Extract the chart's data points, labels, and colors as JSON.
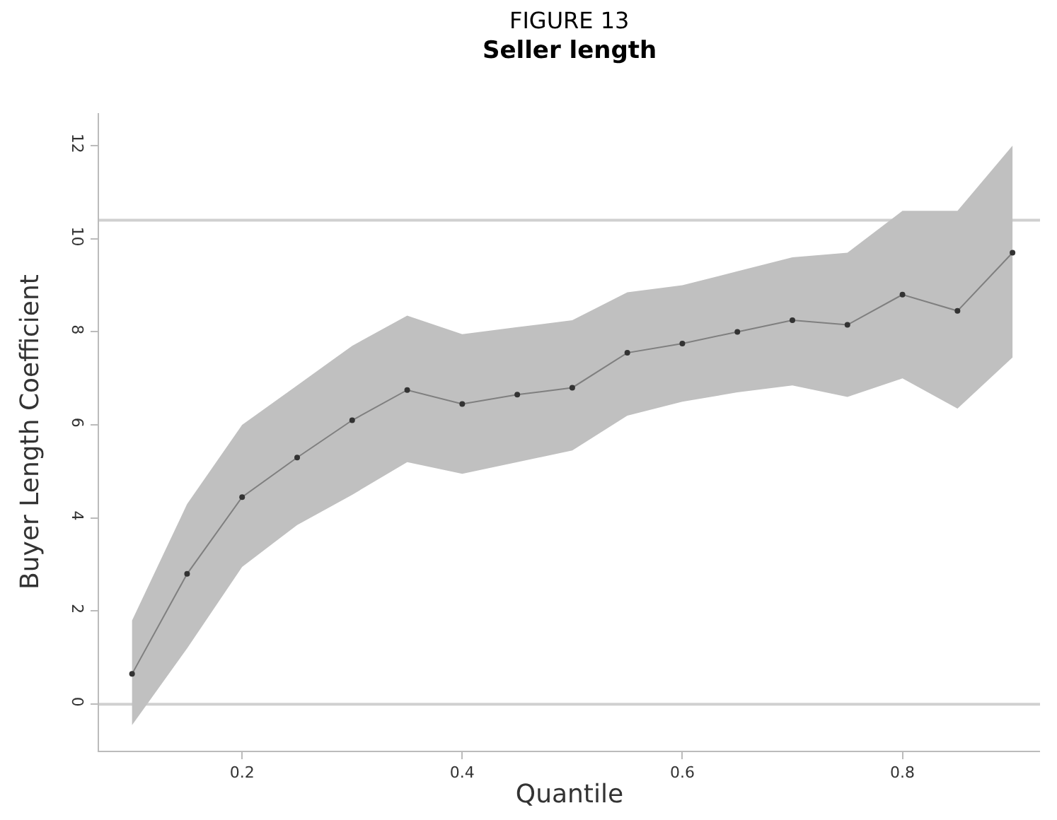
{
  "chart_data": {
    "type": "line",
    "title": "FIGURE 13",
    "subtitle": "Seller length",
    "xlabel": "Quantile",
    "ylabel": "Buyer Length Coefficient",
    "x": [
      0.1,
      0.15,
      0.2,
      0.25,
      0.3,
      0.35,
      0.4,
      0.45,
      0.5,
      0.55,
      0.6,
      0.65,
      0.7,
      0.75,
      0.8,
      0.85,
      0.9
    ],
    "series": [
      {
        "color": "#7f7f7f",
        "values": [
          0.65,
          2.8,
          4.45,
          5.3,
          6.1,
          6.75,
          6.45,
          6.65,
          6.8,
          7.55,
          7.75,
          8.0,
          8.25,
          8.15,
          8.8,
          8.45,
          9.7
        ],
        "lower": [
          -0.45,
          1.2,
          2.95,
          3.85,
          4.5,
          5.2,
          4.95,
          5.2,
          5.45,
          6.2,
          6.5,
          6.7,
          6.85,
          6.6,
          7.0,
          6.35,
          7.45
        ],
        "upper": [
          1.8,
          4.3,
          6.0,
          6.85,
          7.7,
          8.35,
          7.95,
          8.1,
          8.25,
          8.85,
          9.0,
          9.3,
          9.6,
          9.7,
          10.6,
          10.6,
          12.0
        ]
      }
    ],
    "ref_lines": [
      {
        "axis": "y",
        "value": 10.4,
        "color": "#d0d0d0"
      },
      {
        "axis": "y",
        "value": 0,
        "color": "#d0d0d0"
      }
    ],
    "xlim": [
      0.07,
      0.925
    ],
    "xticks": [
      0.2,
      0.4,
      0.6,
      0.8
    ],
    "ylim": [
      -1,
      12.7
    ],
    "yticks": [
      0,
      2,
      4,
      6,
      8,
      10,
      12
    ],
    "grid": false,
    "marker": "circle",
    "line_style": "solid"
  }
}
